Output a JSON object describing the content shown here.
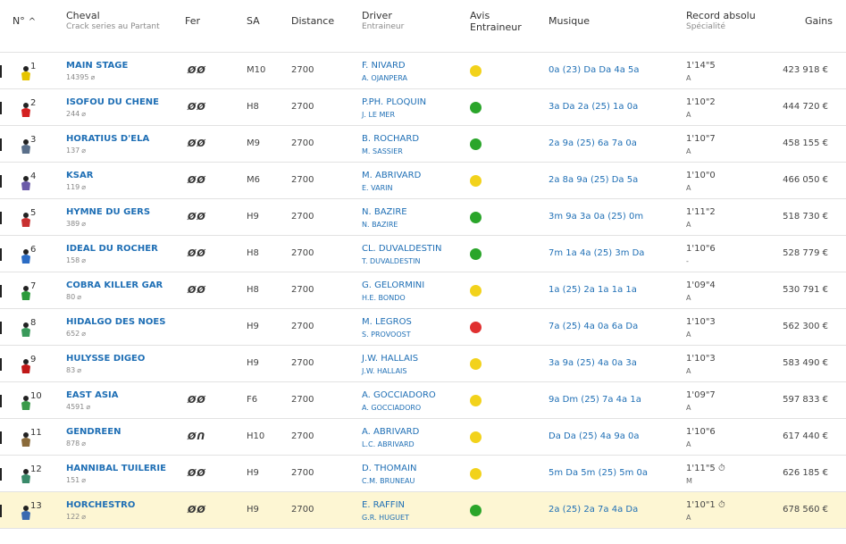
{
  "header": {
    "num": "N°",
    "cheval": "Cheval",
    "cheval_sub": "Crack series au Partant",
    "fer": "Fer",
    "sa": "SA",
    "distance": "Distance",
    "driver": "Driver",
    "driver_sub": "Entraineur",
    "avis": "Avis Entraineur",
    "musique": "Musique",
    "record": "Record absolu",
    "record_sub": "Spécialité",
    "gains": "Gains"
  },
  "rows": [
    {
      "num": "1",
      "name": "MAIN STAGE",
      "crack": "14395",
      "fer": "ØØ",
      "sa": "M10",
      "distance": "2700",
      "driver": "F. NIVARD",
      "trainer": "A. OJANPERA",
      "avis": "yellow",
      "musique": "0a (23) Da Da 4a 5a",
      "record": "1'14\"5",
      "spec": "A",
      "gains": "423 918 €",
      "silk": "#e6c400"
    },
    {
      "num": "2",
      "name": "ISOFOU DU CHENE",
      "crack": "244",
      "fer": "ØØ",
      "sa": "H8",
      "distance": "2700",
      "driver": "P.PH. PLOQUIN",
      "trainer": "J. LE MER",
      "avis": "green",
      "musique": "3a Da 2a (25) 1a 0a",
      "record": "1'10\"2",
      "spec": "A",
      "gains": "444 720 €",
      "silk": "#d42020"
    },
    {
      "num": "3",
      "name": "HORATIUS D'ELA",
      "crack": "137",
      "fer": "ØØ",
      "sa": "M9",
      "distance": "2700",
      "driver": "B. ROCHARD",
      "trainer": "M. SASSIER",
      "avis": "green",
      "musique": "2a 9a (25) 6a 7a 0a",
      "record": "1'10\"7",
      "spec": "A",
      "gains": "458 155 €",
      "silk": "#5a6f8a"
    },
    {
      "num": "4",
      "name": "KSAR",
      "crack": "119",
      "fer": "ØØ",
      "sa": "M6",
      "distance": "2700",
      "driver": "M. ABRIVARD",
      "trainer": "E. VARIN",
      "avis": "yellow",
      "musique": "2a 8a 9a (25) Da 5a",
      "record": "1'10\"0",
      "spec": "A",
      "gains": "466 050 €",
      "silk": "#6a5aa8"
    },
    {
      "num": "5",
      "name": "HYMNE DU GERS",
      "crack": "389",
      "fer": "ØØ",
      "sa": "H9",
      "distance": "2700",
      "driver": "N. BAZIRE",
      "trainer": "N. BAZIRE",
      "avis": "green",
      "musique": "3m 9a 3a 0a (25) 0m",
      "record": "1'11\"2",
      "spec": "A",
      "gains": "518 730 €",
      "silk": "#c83030"
    },
    {
      "num": "6",
      "name": "IDEAL DU ROCHER",
      "crack": "158",
      "fer": "ØØ",
      "sa": "H8",
      "distance": "2700",
      "driver": "CL. DUVALDESTIN",
      "trainer": "T. DUVALDESTIN",
      "avis": "green",
      "musique": "7m 1a 4a (25) 3m Da",
      "record": "1'10\"6",
      "spec": "-",
      "gains": "528 779 €",
      "silk": "#2b6cc4"
    },
    {
      "num": "7",
      "name": "COBRA KILLER GAR",
      "crack": "80",
      "fer": "ØØ",
      "sa": "H8",
      "distance": "2700",
      "driver": "G. GELORMINI",
      "trainer": "H.E. BONDO",
      "avis": "yellow",
      "musique": "1a (25) 2a 1a 1a 1a",
      "record": "1'09\"4",
      "spec": "A",
      "gains": "530 791 €",
      "silk": "#2a9a3a"
    },
    {
      "num": "8",
      "name": "HIDALGO DES NOES",
      "crack": "652",
      "fer": "",
      "sa": "H9",
      "distance": "2700",
      "driver": "M. LEGROS",
      "trainer": "S. PROVOOST",
      "avis": "red",
      "musique": "7a (25) 4a 0a 6a Da",
      "record": "1'10\"3",
      "spec": "A",
      "gains": "562 300 €",
      "silk": "#3a9a5a"
    },
    {
      "num": "9",
      "name": "HULYSSE DIGEO",
      "crack": "83",
      "fer": "",
      "sa": "H9",
      "distance": "2700",
      "driver": "J.W. HALLAIS",
      "trainer": "J.W. HALLAIS",
      "avis": "yellow",
      "musique": "3a 9a (25) 4a 0a 3a",
      "record": "1'10\"3",
      "spec": "A",
      "gains": "583 490 €",
      "silk": "#c01818"
    },
    {
      "num": "10",
      "name": "EAST ASIA",
      "crack": "4591",
      "fer": "ØØ",
      "sa": "F6",
      "distance": "2700",
      "driver": "A. GOCCIADORO",
      "trainer": "A. GOCCIADORO",
      "avis": "yellow",
      "musique": "9a Dm (25) 7a 4a 1a",
      "record": "1'09\"7",
      "spec": "A",
      "gains": "597 833 €",
      "silk": "#3a9a4a"
    },
    {
      "num": "11",
      "name": "GENDREEN",
      "crack": "878",
      "fer": "ØՈ",
      "sa": "H10",
      "distance": "2700",
      "driver": "A. ABRIVARD",
      "trainer": "L.C. ABRIVARD",
      "avis": "yellow",
      "musique": "Da Da (25) 4a 9a 0a",
      "record": "1'10\"6",
      "spec": "A",
      "gains": "617 440 €",
      "silk": "#8a6a3a"
    },
    {
      "num": "12",
      "name": "HANNIBAL TUILERIE",
      "crack": "151",
      "fer": "ØØ",
      "sa": "H9",
      "distance": "2700",
      "driver": "D. THOMAIN",
      "trainer": "C.M. BRUNEAU",
      "avis": "yellow",
      "musique": "5m Da 5m (25) 5m 0a",
      "record": "1'11\"5 ⏱",
      "spec": "M",
      "gains": "626 185 €",
      "silk": "#3a8a6a"
    },
    {
      "num": "13",
      "name": "HORCHESTRO",
      "crack": "122",
      "fer": "ØØ",
      "sa": "H9",
      "distance": "2700",
      "driver": "E. RAFFIN",
      "trainer": "G.R. HUGUET",
      "avis": "green",
      "musique": "2a (25) 2a 7a 4a Da",
      "record": "1'10\"1 ⏱",
      "spec": "A",
      "gains": "678 560 €",
      "silk": "#3a6ab0",
      "highlight": true
    }
  ]
}
